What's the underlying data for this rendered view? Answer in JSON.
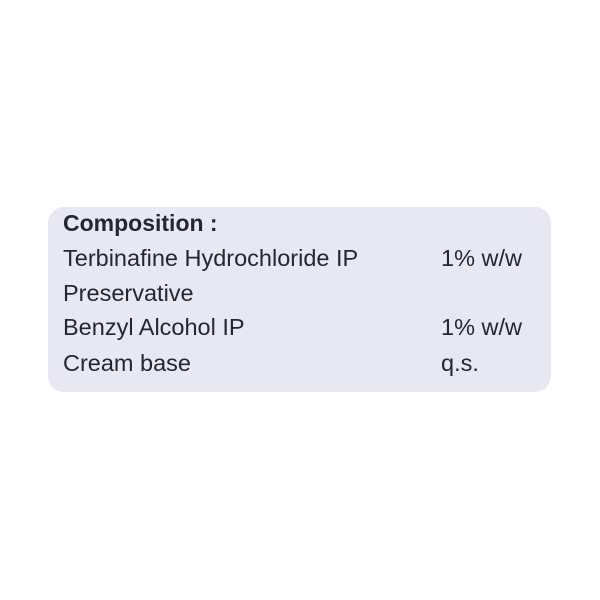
{
  "label": {
    "title": "Composition :",
    "rows": [
      {
        "name": "Terbinafine Hydrochloride IP",
        "qty": "1% w/w"
      },
      {
        "name": "Preservative",
        "qty": ""
      },
      {
        "name": "Benzyl Alcohol IP",
        "qty": "1% w/w"
      },
      {
        "name": "Cream base",
        "qty": "q.s."
      }
    ],
    "background_color": "#e8e8f2",
    "text_color": "#262630"
  }
}
